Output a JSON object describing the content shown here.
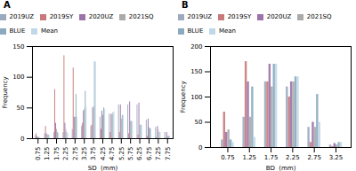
{
  "chart_data": [
    {
      "type": "bar",
      "title": "A",
      "xlabel": "SD  (mm)",
      "ylabel": "Frequency",
      "x": [
        0.75,
        1.25,
        1.75,
        2.25,
        2.75,
        3.25,
        3.75,
        4.25,
        4.75,
        5.25,
        5.75,
        6.25,
        6.75,
        7.25,
        7.75
      ],
      "series": [
        {
          "name": "2019UZ",
          "color": "#9BAABF",
          "values": [
            5,
            8,
            10,
            10,
            15,
            20,
            20,
            35,
            40,
            55,
            55,
            55,
            30,
            18,
            10
          ]
        },
        {
          "name": "2019SY",
          "color": "#C87A7A",
          "values": [
            8,
            20,
            80,
            135,
            115,
            25,
            22,
            15,
            10,
            10,
            8,
            6,
            4,
            2,
            1
          ]
        },
        {
          "name": "2020UZ",
          "color": "#9B72AA",
          "values": [
            3,
            8,
            25,
            25,
            35,
            45,
            50,
            45,
            40,
            55,
            60,
            58,
            32,
            20,
            10
          ]
        },
        {
          "name": "2021SQ",
          "color": "#AAAAAA",
          "values": [
            2,
            6,
            15,
            15,
            35,
            48,
            52,
            38,
            38,
            32,
            28,
            22,
            18,
            14,
            4
          ]
        },
        {
          "name": "BLUE",
          "color": "#8AAABF",
          "values": [
            2,
            6,
            10,
            10,
            72,
            77,
            125,
            50,
            42,
            38,
            28,
            22,
            16,
            10,
            4
          ]
        },
        {
          "name": "Mean",
          "color": "#C0D8E8",
          "values": [
            1,
            5,
            8,
            8,
            35,
            52,
            125,
            48,
            44,
            38,
            28,
            22,
            16,
            10,
            4
          ]
        }
      ],
      "xlim": [
        0.45,
        8.05
      ],
      "xticks": [
        0.75,
        1.25,
        1.75,
        2.25,
        2.75,
        3.25,
        3.75,
        4.25,
        4.75,
        5.25,
        5.75,
        6.25,
        6.75,
        7.25,
        7.75
      ],
      "ylim": [
        0,
        150
      ],
      "yticks": [
        0,
        50,
        100,
        150
      ],
      "legend": "upper right",
      "grid": false
    },
    {
      "type": "bar",
      "title": "B",
      "xlabel": "BD  (mm)",
      "ylabel": "Frequency",
      "x": [
        0.75,
        1.25,
        1.75,
        2.25,
        2.75,
        3.25
      ],
      "series": [
        {
          "name": "2019UZ",
          "color": "#9BAABF",
          "values": [
            15,
            60,
            130,
            120,
            40,
            5
          ]
        },
        {
          "name": "2019SY",
          "color": "#C87A7A",
          "values": [
            70,
            170,
            130,
            100,
            10,
            2
          ]
        },
        {
          "name": "2020UZ",
          "color": "#9B72AA",
          "values": [
            30,
            130,
            165,
            130,
            50,
            8
          ]
        },
        {
          "name": "2021SQ",
          "color": "#AAAAAA",
          "values": [
            35,
            60,
            120,
            130,
            40,
            5
          ]
        },
        {
          "name": "BLUE",
          "color": "#8AAABF",
          "values": [
            15,
            120,
            165,
            140,
            105,
            10
          ]
        },
        {
          "name": "Mean",
          "color": "#C0D8E8",
          "values": [
            10,
            20,
            165,
            140,
            50,
            10
          ]
        }
      ],
      "xlim": [
        0.35,
        3.6
      ],
      "xticks": [
        0.75,
        1.25,
        1.75,
        2.25,
        2.75,
        3.25
      ],
      "ylim": [
        0,
        200
      ],
      "yticks": [
        0,
        50,
        100,
        150,
        200
      ],
      "legend": "upper right",
      "grid": false
    }
  ]
}
